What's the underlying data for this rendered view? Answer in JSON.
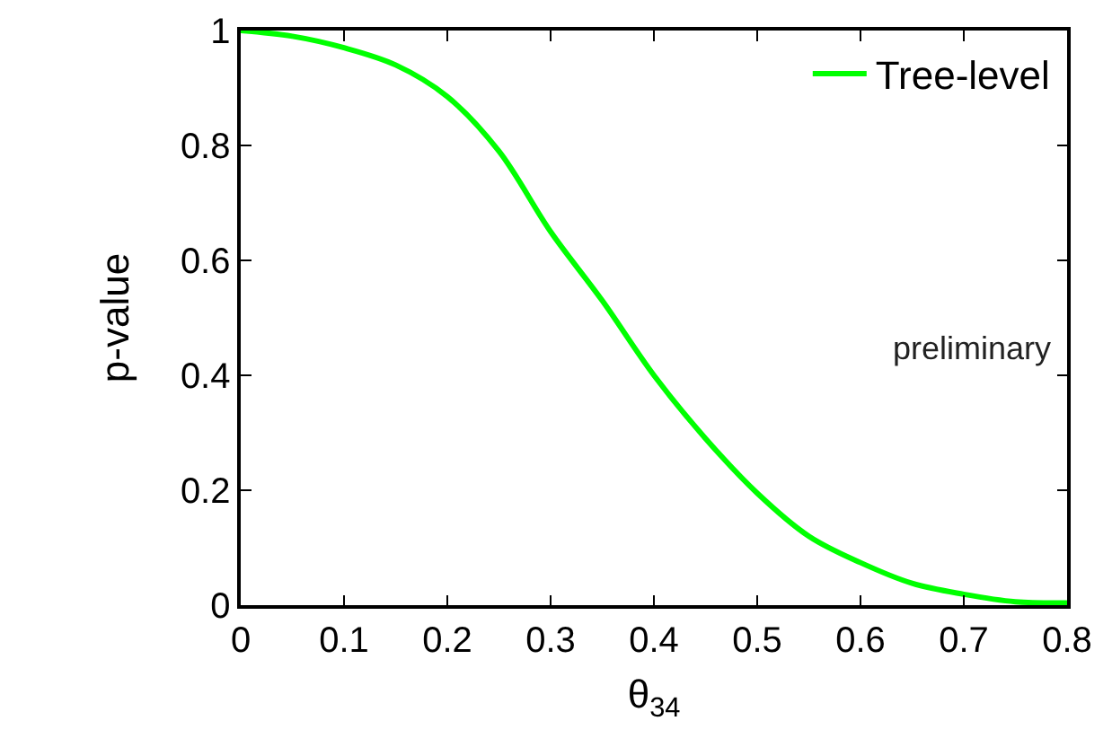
{
  "chart_data": {
    "type": "line",
    "xlabel": "θ$_{34}$",
    "ylabel": "p-value",
    "x": [
      0,
      0.05,
      0.1,
      0.15,
      0.2,
      0.25,
      0.3,
      0.35,
      0.4,
      0.45,
      0.5,
      0.55,
      0.6,
      0.65,
      0.7,
      0.75,
      0.8
    ],
    "series": [
      {
        "name": "Tree-level",
        "color": "#00ff00",
        "values": [
          1,
          0.99,
          0.97,
          0.94,
          0.885,
          0.79,
          0.65,
          0.53,
          0.4,
          0.29,
          0.195,
          0.12,
          0.074,
          0.038,
          0.019,
          0.006,
          0.004
        ]
      }
    ],
    "xlim": [
      0,
      0.8
    ],
    "xticks": [
      0,
      0.1,
      0.2,
      0.3,
      0.4,
      0.5,
      0.6,
      0.7,
      0.8
    ],
    "ylim": [
      0,
      1
    ],
    "yticks": [
      0,
      0.2,
      0.4,
      0.6,
      0.8,
      1
    ],
    "grid": false,
    "legend": "top right",
    "line_style": "solid",
    "marker": "none",
    "annotations": [
      "preliminary"
    ]
  }
}
